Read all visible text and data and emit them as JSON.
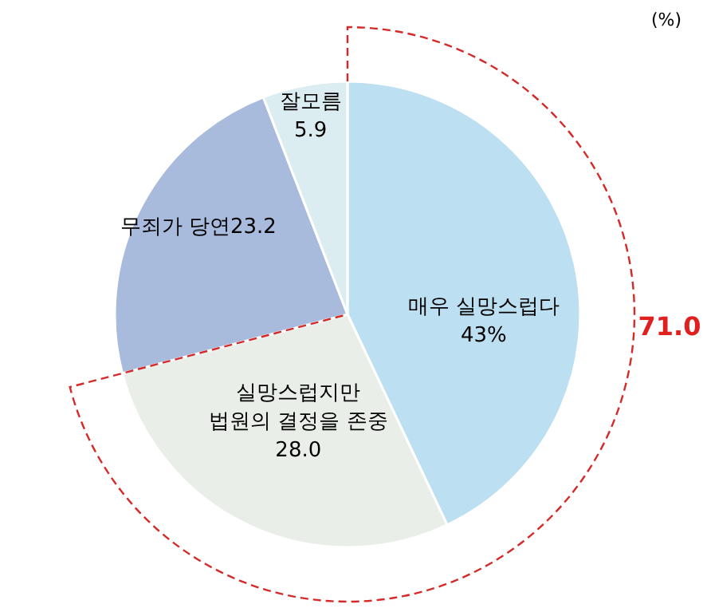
{
  "chart_data": {
    "type": "pie",
    "categories": [
      "매우 실망스럽다",
      "실망스럽지만 법원의 결정을 존중",
      "무죄가 당연",
      "잘모름"
    ],
    "values": [
      43,
      28.0,
      23.2,
      5.9
    ],
    "value_labels": [
      "43%",
      "28.0",
      "23.2",
      "5.9"
    ],
    "colors": [
      "#bcdff1",
      "#e9efe8",
      "#a8bbdc",
      "#dcedf2"
    ],
    "annotations": [
      "(%)",
      "71.0"
    ]
  }
}
